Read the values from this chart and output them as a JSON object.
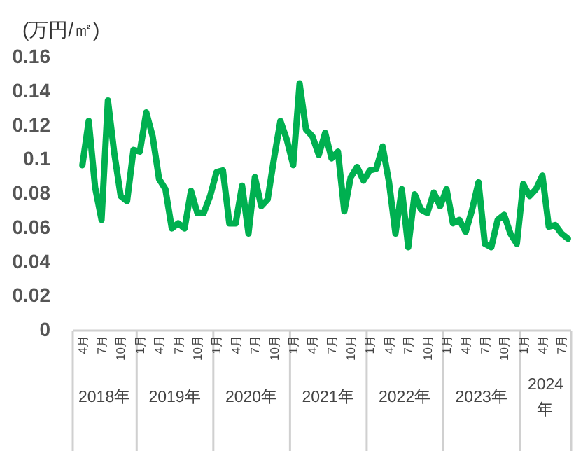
{
  "chart_data": {
    "type": "line",
    "ylabel": "(万円/㎡)",
    "x": [
      "2018-04",
      "2018-05",
      "2018-06",
      "2018-07",
      "2018-08",
      "2018-09",
      "2018-10",
      "2018-11",
      "2018-12",
      "2019-01",
      "2019-02",
      "2019-03",
      "2019-04",
      "2019-05",
      "2019-06",
      "2019-07",
      "2019-08",
      "2019-09",
      "2019-10",
      "2019-11",
      "2019-12",
      "2020-01",
      "2020-02",
      "2020-03",
      "2020-04",
      "2020-05",
      "2020-06",
      "2020-07",
      "2020-08",
      "2020-09",
      "2020-10",
      "2020-11",
      "2020-12",
      "2021-01",
      "2021-02",
      "2021-03",
      "2021-04",
      "2021-05",
      "2021-06",
      "2021-07",
      "2021-08",
      "2021-09",
      "2021-10",
      "2021-11",
      "2021-12",
      "2022-01",
      "2022-02",
      "2022-03",
      "2022-04",
      "2022-05",
      "2022-06",
      "2022-07",
      "2022-08",
      "2022-09",
      "2022-10",
      "2022-11",
      "2022-12",
      "2023-01",
      "2023-02",
      "2023-03",
      "2023-04",
      "2023-05",
      "2023-06",
      "2023-07",
      "2023-08",
      "2023-09",
      "2023-10",
      "2023-11",
      "2023-12",
      "2024-01",
      "2024-02",
      "2024-03",
      "2024-04",
      "2024-05",
      "2024-06",
      "2024-07",
      "2024-08"
    ],
    "series": [
      {
        "color": "#00b050",
        "values": [
          0.096,
          0.122,
          0.083,
          0.064,
          0.134,
          0.103,
          0.078,
          0.075,
          0.105,
          0.104,
          0.127,
          0.113,
          0.088,
          0.082,
          0.059,
          0.062,
          0.059,
          0.081,
          0.068,
          0.068,
          0.078,
          0.092,
          0.093,
          0.062,
          0.062,
          0.084,
          0.056,
          0.089,
          0.072,
          0.076,
          0.1,
          0.122,
          0.111,
          0.096,
          0.144,
          0.117,
          0.113,
          0.102,
          0.115,
          0.1,
          0.104,
          0.069,
          0.089,
          0.095,
          0.087,
          0.093,
          0.094,
          0.107,
          0.086,
          0.056,
          0.082,
          0.048,
          0.079,
          0.07,
          0.068,
          0.08,
          0.072,
          0.082,
          0.062,
          0.064,
          0.057,
          0.07,
          0.086,
          0.05,
          0.048,
          0.064,
          0.067,
          0.056,
          0.05,
          0.085,
          0.078,
          0.082,
          0.09,
          0.06,
          0.061,
          0.056,
          0.053
        ]
      }
    ],
    "xlim": [
      "2018-03",
      "2024-09"
    ],
    "xticks": [
      {
        "value": "2018-04",
        "label": "4月"
      },
      {
        "value": "2018-07",
        "label": "7月"
      },
      {
        "value": "2018-10",
        "label": "10月"
      },
      {
        "value": "2019-01",
        "label": "1月"
      },
      {
        "value": "2019-04",
        "label": "4月"
      },
      {
        "value": "2019-07",
        "label": "7月"
      },
      {
        "value": "2019-10",
        "label": "10月"
      },
      {
        "value": "2020-01",
        "label": "1月"
      },
      {
        "value": "2020-04",
        "label": "4月"
      },
      {
        "value": "2020-07",
        "label": "7月"
      },
      {
        "value": "2020-10",
        "label": "10月"
      },
      {
        "value": "2021-01",
        "label": "1月"
      },
      {
        "value": "2021-04",
        "label": "4月"
      },
      {
        "value": "2021-07",
        "label": "7月"
      },
      {
        "value": "2021-10",
        "label": "10月"
      },
      {
        "value": "2022-01",
        "label": "1月"
      },
      {
        "value": "2022-04",
        "label": "4月"
      },
      {
        "value": "2022-07",
        "label": "7月"
      },
      {
        "value": "2022-10",
        "label": "10月"
      },
      {
        "value": "2023-01",
        "label": "1月"
      },
      {
        "value": "2023-04",
        "label": "4月"
      },
      {
        "value": "2023-07",
        "label": "7月"
      },
      {
        "value": "2023-10",
        "label": "10月"
      },
      {
        "value": "2024-01",
        "label": "1月"
      },
      {
        "value": "2024-04",
        "label": "4月"
      },
      {
        "value": "2024-07",
        "label": "7月"
      }
    ],
    "ylim": [
      0,
      0.16
    ],
    "yticks": [
      0,
      0.02,
      0.04,
      0.06,
      0.08,
      0.1,
      0.12,
      0.14,
      0.16
    ],
    "annotations": [
      "2018年",
      "2019年",
      "2020年",
      "2021年",
      "2022年",
      "2023年",
      "2024年"
    ],
    "grid": false,
    "marker": "none",
    "line_style": "solid"
  }
}
